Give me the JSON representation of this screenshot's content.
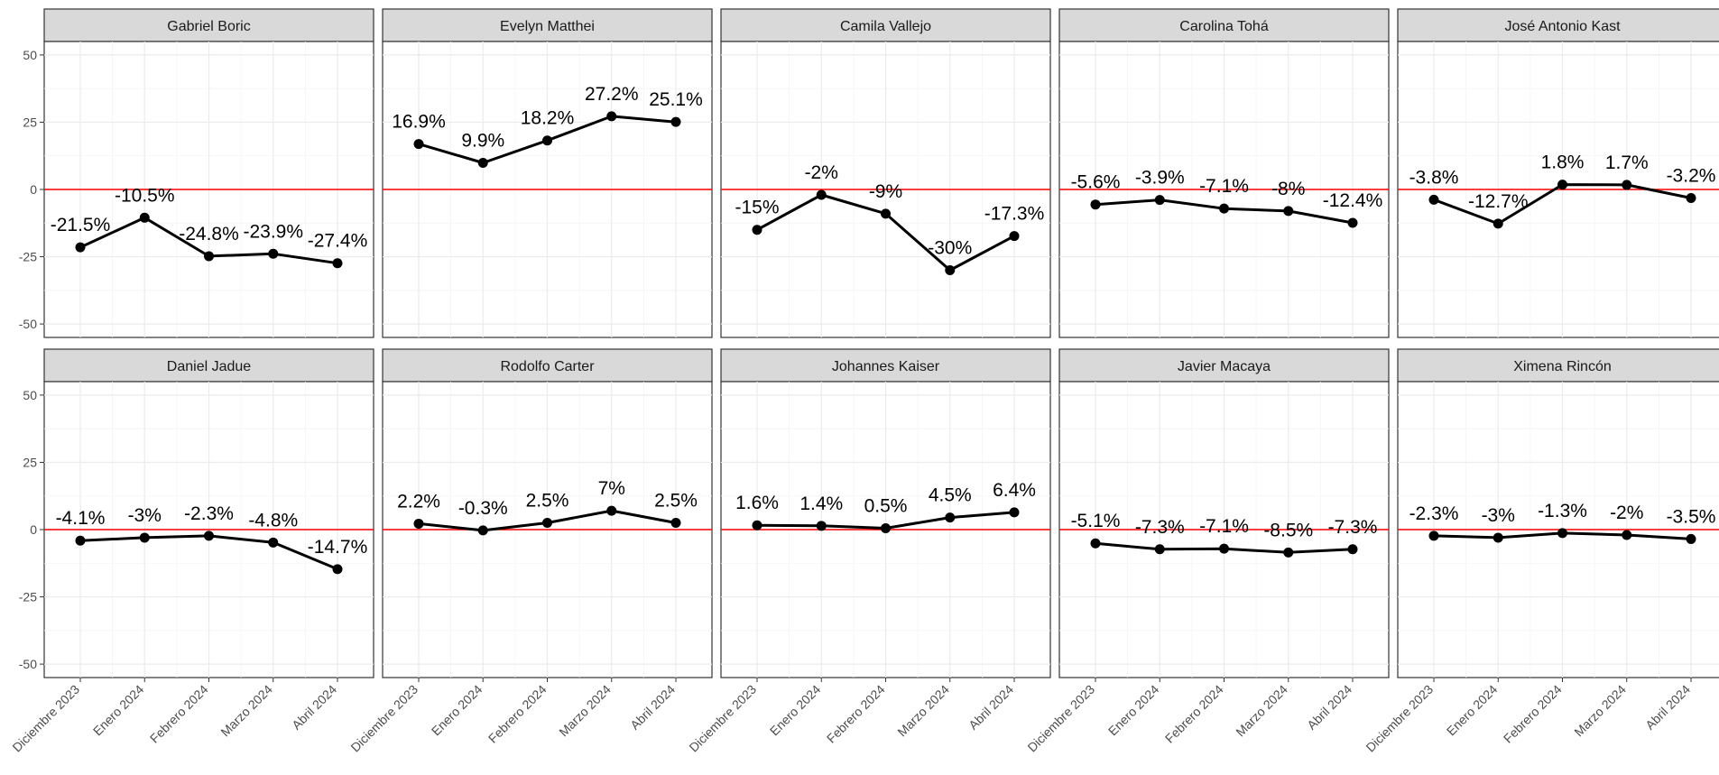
{
  "chart_data": {
    "type": "line",
    "layout": "facet-grid-2x5",
    "x": [
      "Diciembre 2023",
      "Enero 2024",
      "Febrero 2024",
      "Marzo 2024",
      "Abril 2024"
    ],
    "ylim": [
      -55,
      55
    ],
    "yticks": [
      -50,
      -25,
      0,
      25,
      50
    ],
    "ytick_labels": [
      "-50",
      "-25",
      "0",
      "25",
      "50"
    ],
    "reference_line": {
      "y": 0,
      "color": "#ff0000"
    },
    "grid": true,
    "line_color": "#000000",
    "strip_color": "#d9d9d9",
    "panels": [
      {
        "name": "Gabriel Boric",
        "values": [
          -21.5,
          -10.5,
          -24.8,
          -23.9,
          -27.4
        ],
        "labels": [
          "-21.5%",
          "-10.5%",
          "-24.8%",
          "-23.9%",
          "-27.4%"
        ]
      },
      {
        "name": "Evelyn Matthei",
        "values": [
          16.9,
          9.9,
          18.2,
          27.2,
          25.1
        ],
        "labels": [
          "16.9%",
          "9.9%",
          "18.2%",
          "27.2%",
          "25.1%"
        ]
      },
      {
        "name": "Camila Vallejo",
        "values": [
          -15,
          -2,
          -9,
          -30,
          -17.3
        ],
        "labels": [
          "-15%",
          "-2%",
          "-9%",
          "-30%",
          "-17.3%"
        ]
      },
      {
        "name": "Carolina Tohá",
        "values": [
          -5.6,
          -3.9,
          -7.1,
          -8,
          -12.4
        ],
        "labels": [
          "-5.6%",
          "-3.9%",
          "-7.1%",
          "-8%",
          "-12.4%"
        ]
      },
      {
        "name": "José Antonio Kast",
        "values": [
          -3.8,
          -12.7,
          1.8,
          1.7,
          -3.2
        ],
        "labels": [
          "-3.8%",
          "-12.7%",
          "1.8%",
          "1.7%",
          "-3.2%"
        ]
      },
      {
        "name": "Daniel Jadue",
        "values": [
          -4.1,
          -3,
          -2.3,
          -4.8,
          -14.7
        ],
        "labels": [
          "-4.1%",
          "-3%",
          "-2.3%",
          "-4.8%",
          "-14.7%"
        ]
      },
      {
        "name": "Rodolfo Carter",
        "values": [
          2.2,
          -0.3,
          2.5,
          7,
          2.5
        ],
        "labels": [
          "2.2%",
          "-0.3%",
          "2.5%",
          "7%",
          "2.5%"
        ]
      },
      {
        "name": "Johannes Kaiser",
        "values": [
          1.6,
          1.4,
          0.5,
          4.5,
          6.4
        ],
        "labels": [
          "1.6%",
          "1.4%",
          "0.5%",
          "4.5%",
          "6.4%"
        ]
      },
      {
        "name": "Javier Macaya",
        "values": [
          -5.1,
          -7.3,
          -7.1,
          -8.5,
          -7.3
        ],
        "labels": [
          "-5.1%",
          "-7.3%",
          "-7.1%",
          "-8.5%",
          "-7.3%"
        ]
      },
      {
        "name": "Ximena Rincón",
        "values": [
          -2.3,
          -3,
          -1.3,
          -2,
          -3.5
        ],
        "labels": [
          "-2.3%",
          "-3%",
          "-1.3%",
          "-2%",
          "-3.5%"
        ]
      }
    ]
  }
}
